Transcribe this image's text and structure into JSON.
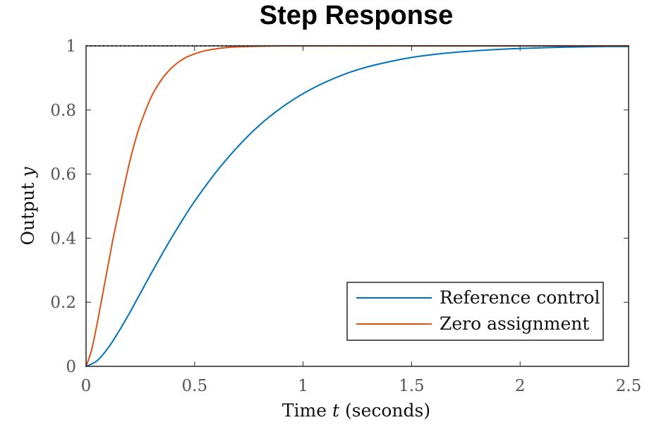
{
  "chart_data": {
    "type": "line",
    "title": "Step Response",
    "xlabel": "Time t (seconds)",
    "ylabel": "Output y",
    "xlim": [
      0,
      2.5
    ],
    "ylim": [
      0,
      1
    ],
    "xticks": [
      0,
      0.5,
      1,
      1.5,
      2,
      2.5
    ],
    "xtick_labels": [
      "0",
      "0.5",
      "1",
      "1.5",
      "2",
      "2.5"
    ],
    "yticks": [
      0,
      0.2,
      0.4,
      0.6,
      0.8,
      1
    ],
    "ytick_labels": [
      "0",
      "0.2",
      "0.4",
      "0.6",
      "0.8",
      "1"
    ],
    "grid": false,
    "legend_position": "bottom-right",
    "reference_line": {
      "y": 1,
      "style": "dotted",
      "color": "#000000"
    },
    "series": [
      {
        "name": "Reference control",
        "color": "#0072BD",
        "x": [
          0,
          0.05,
          0.1,
          0.15,
          0.2,
          0.25,
          0.3,
          0.35,
          0.4,
          0.45,
          0.5,
          0.6,
          0.7,
          0.8,
          0.9,
          1.0,
          1.1,
          1.2,
          1.3,
          1.4,
          1.5,
          1.6,
          1.7,
          1.8,
          1.9,
          2.0,
          2.1,
          2.2,
          2.3,
          2.4,
          2.5
        ],
        "values": [
          0,
          0.017,
          0.056,
          0.108,
          0.166,
          0.228,
          0.29,
          0.35,
          0.408,
          0.463,
          0.515,
          0.607,
          0.686,
          0.753,
          0.807,
          0.851,
          0.886,
          0.914,
          0.935,
          0.951,
          0.964,
          0.973,
          0.98,
          0.985,
          0.989,
          0.992,
          0.994,
          0.996,
          0.997,
          0.998,
          0.998
        ]
      },
      {
        "name": "Zero assignment",
        "color": "#D95319",
        "x": [
          0,
          0.025,
          0.05,
          0.075,
          0.1,
          0.125,
          0.15,
          0.175,
          0.2,
          0.225,
          0.25,
          0.3,
          0.35,
          0.4,
          0.45,
          0.5,
          0.55,
          0.6,
          0.65,
          0.7,
          0.8,
          0.9,
          1.0,
          1.5,
          2.0,
          2.5
        ],
        "values": [
          0,
          0.05,
          0.13,
          0.22,
          0.31,
          0.4,
          0.48,
          0.56,
          0.635,
          0.7,
          0.755,
          0.84,
          0.897,
          0.935,
          0.96,
          0.975,
          0.985,
          0.991,
          0.995,
          0.997,
          0.999,
          1.0,
          1.0,
          1.0,
          1.0,
          1.0
        ]
      }
    ]
  }
}
